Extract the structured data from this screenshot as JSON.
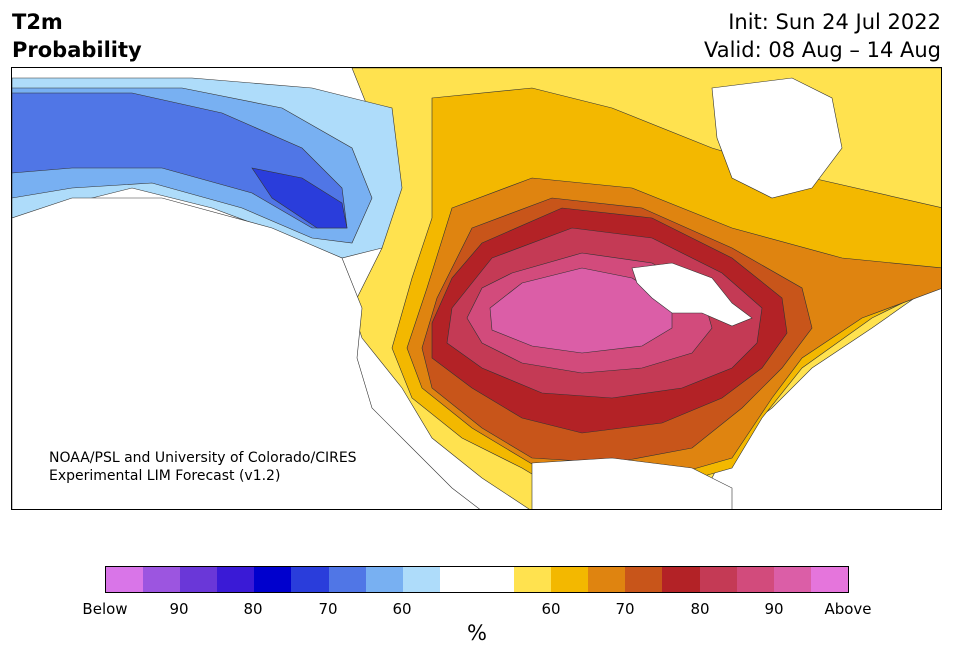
{
  "header": {
    "title_line1": "T2m",
    "title_line2": "Probability",
    "init": "Init: Sun 24 Jul 2022",
    "valid": "Valid: 08 Aug – 14 Aug"
  },
  "credit": {
    "line1": "NOAA/PSL and University of Colorado/CIRES",
    "line2": "Experimental LIM Forecast (v1.2)"
  },
  "colorbar": {
    "colors": [
      "#d975e8",
      "#9c55e0",
      "#6a37d8",
      "#3a1ad6",
      "#0000cd",
      "#2a3ddb",
      "#5076e6",
      "#78b0f2",
      "#aedcfa",
      "#ffffff",
      "#ffffff",
      "#ffe24f",
      "#f3b800",
      "#df8410",
      "#c8551a",
      "#b32226",
      "#c43a55",
      "#d24b7c",
      "#db5ea7",
      "#e575dc"
    ],
    "tick_labels": [
      "Below",
      "90",
      "80",
      "70",
      "60",
      "60",
      "70",
      "80",
      "90",
      "Above"
    ],
    "unit": "%"
  },
  "map_palette": {
    "ocean": "#ffffff",
    "cold_dark": "#2a3ddb",
    "cold_mid": "#5076e6",
    "cold_light": "#78b0f2",
    "cold_pale": "#aedcfa",
    "warm_yellow": "#ffe24f",
    "warm_gold": "#f3b800",
    "warm_orange": "#df8410",
    "warm_dark_orange": "#c8551a",
    "warm_red": "#b32226",
    "warm_crimson": "#c43a55",
    "warm_rose": "#d24b7c",
    "warm_pink": "#db5ea7",
    "coastline": "#333333"
  }
}
